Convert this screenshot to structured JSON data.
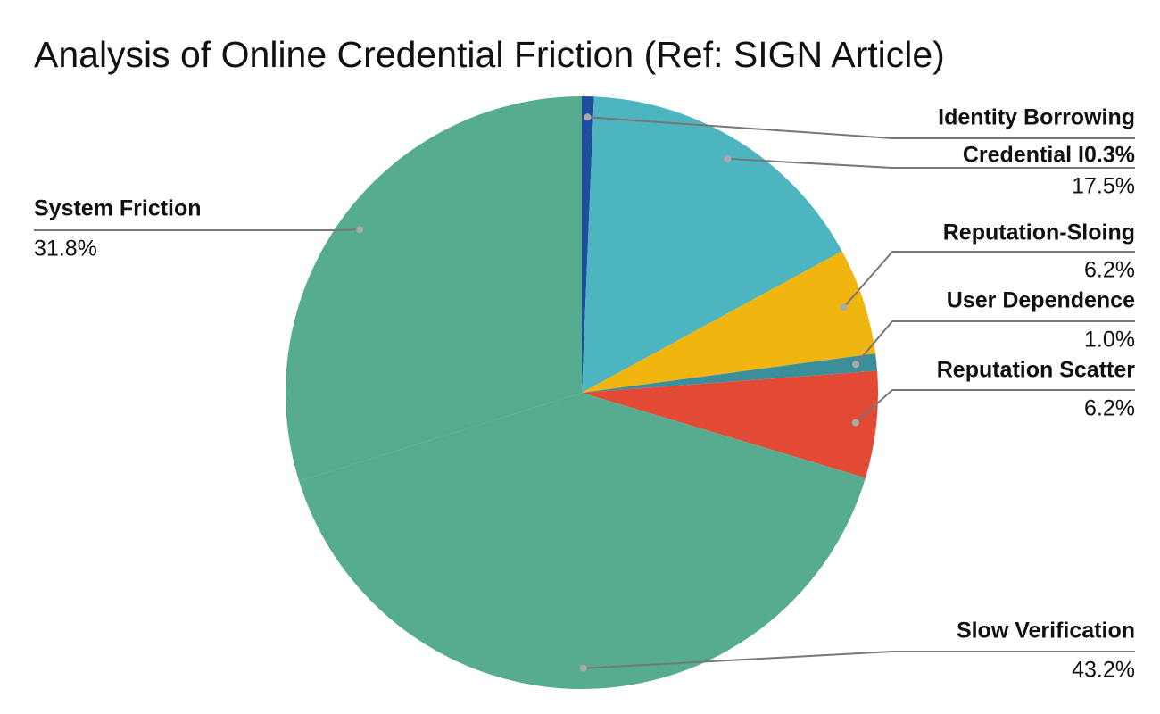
{
  "chart_data": {
    "type": "pie",
    "title": "Analysis of Online Credential Friction (Ref: SIGN Article)",
    "categories": [
      "Identity Borrowing",
      "Credential I0.3%",
      "Reputation-Sloing",
      "User Dependence",
      "Reputation Scatter",
      "Slow Verification",
      "System Friction"
    ],
    "values": [
      0.7,
      17.5,
      6.2,
      1.0,
      6.2,
      43.2,
      31.8
    ],
    "value_labels": [
      null,
      "17.5%",
      "6.2%",
      "1.0%",
      "6.2%",
      "43.2%",
      "31.8%"
    ],
    "colors": [
      "#1f4e9c",
      "#4db5bf",
      "#f0b50f",
      "#3b8f9a",
      "#e34a36",
      "#55ac8e",
      "#55ac8e"
    ]
  }
}
